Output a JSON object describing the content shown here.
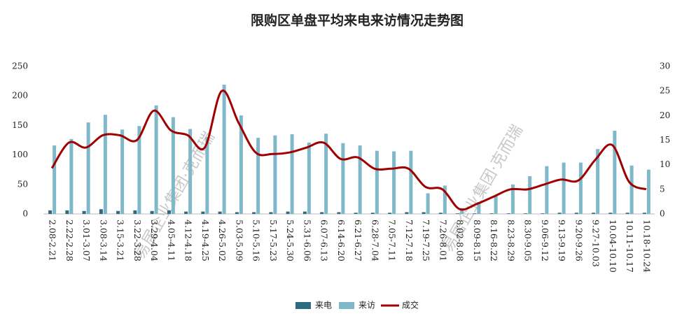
{
  "chart_data": {
    "type": "bar-line",
    "title": "限购区单盘平均来电来访情况走势图",
    "watermark": "易居企业集团·克而瑞",
    "categories": [
      "2.08-2.21",
      "2.22-2.28",
      "3.01-3.07",
      "3.08-3.14",
      "3.15-3.21",
      "3.22-3.28",
      "3.29-4.04",
      "4.05-4.11",
      "4.12-4.18",
      "4.19-4.25",
      "4.26-5.02",
      "5.03-5.09",
      "5.10-5.16",
      "5.17-5.23",
      "5.24-5.30",
      "5.31-6.06",
      "6.07-6.13",
      "6.14-6.20",
      "6.21-6.27",
      "6.28-7.04",
      "7.05-7.11",
      "7.12-7.18",
      "7.19-7.25",
      "7.26-8.01",
      "8.02-8.08",
      "8.09-8.15",
      "8.16-8.22",
      "8.23-8.29",
      "8.30-9.05",
      "9.06-9.12",
      "9.13-9.19",
      "9.20-9.26",
      "9.27-10.03",
      "10.04-10.10",
      "10.11-10.17",
      "10.18-10.24"
    ],
    "series": [
      {
        "name": "来电",
        "color": "#2e6a80",
        "kind": "bar",
        "values": [
          6,
          6,
          5,
          8,
          5,
          6,
          5,
          6,
          4,
          4,
          4,
          3,
          3,
          3,
          4,
          4,
          3,
          3,
          2,
          2,
          2,
          3,
          3,
          2,
          1,
          1,
          1,
          1,
          1,
          1,
          2,
          2,
          2,
          2,
          2,
          2
        ]
      },
      {
        "name": "来访",
        "color": "#7fb8c8",
        "kind": "bar",
        "values": [
          116,
          127,
          155,
          168,
          143,
          149,
          184,
          164,
          144,
          130,
          219,
          167,
          129,
          133,
          135,
          121,
          136,
          120,
          116,
          107,
          106,
          107,
          35,
          48,
          10,
          20,
          30,
          50,
          64,
          81,
          87,
          87,
          110,
          141,
          82,
          75
        ]
      },
      {
        "name": "成交",
        "color": "#a00000",
        "kind": "line",
        "axis": "y2",
        "values": [
          9.3,
          14.5,
          13.5,
          16,
          16,
          15,
          21,
          17,
          16,
          13.5,
          25,
          18.5,
          12.5,
          12.2,
          12.5,
          13.5,
          14.5,
          11.2,
          11.5,
          9.2,
          9.2,
          9.2,
          5.5,
          5,
          1,
          2,
          3.5,
          5,
          5,
          6,
          7,
          6.8,
          11,
          14,
          6.5,
          5
        ]
      }
    ],
    "ylim": [
      0,
      250
    ],
    "yticks": [
      0,
      50,
      100,
      150,
      200,
      250
    ],
    "y2lim": [
      0,
      30
    ],
    "y2ticks": [
      0,
      5,
      10,
      15,
      20,
      25,
      30
    ],
    "legend": "bottom"
  }
}
